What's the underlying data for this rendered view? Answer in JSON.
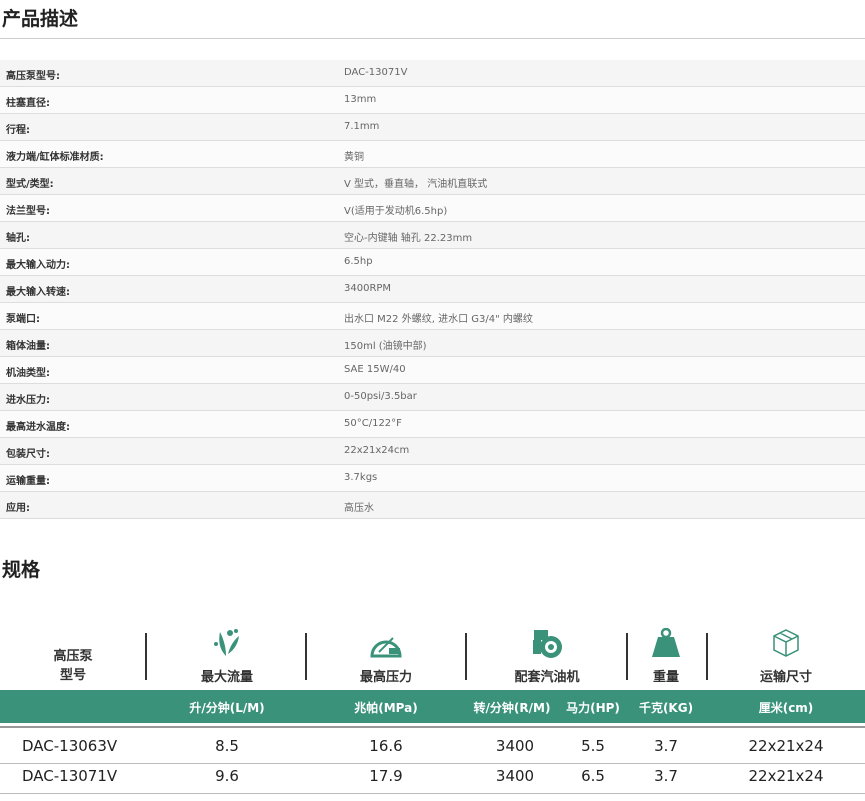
{
  "description": {
    "title": "产品描述",
    "rows": [
      {
        "k": "高压泵型号:",
        "v": "DAC-13071V"
      },
      {
        "k": "柱塞直径:",
        "v": "13mm"
      },
      {
        "k": "行程:",
        "v": "7.1mm"
      },
      {
        "k": "液力端/缸体标准材质:",
        "v": "黄铜"
      },
      {
        "k": "型式/类型:",
        "v": "V 型式，垂直轴， 汽油机直联式"
      },
      {
        "k": "法兰型号:",
        "v": "V(适用于发动机6.5hp)"
      },
      {
        "k": "轴孔:",
        "v": "空心-内键轴 轴孔 22.23mm"
      },
      {
        "k": "最大输入动力:",
        "v": "6.5hp"
      },
      {
        "k": "最大输入转速:",
        "v": "3400RPM"
      },
      {
        "k": "泵端口:",
        "v": "出水口 M22 外螺纹, 进水口 G3/4\" 内螺纹"
      },
      {
        "k": "箱体油量:",
        "v": "150ml (油镜中部)"
      },
      {
        "k": "机油类型:",
        "v": "SAE 15W/40"
      },
      {
        "k": "进水压力:",
        "v": "0-50psi/3.5bar"
      },
      {
        "k": "最高进水温度:",
        "v": "50°C/122°F"
      },
      {
        "k": "包装尺寸:",
        "v": "22x21x24cm"
      },
      {
        "k": "运输重量:",
        "v": "3.7kgs"
      },
      {
        "k": "应用:",
        "v": "高压水"
      }
    ]
  },
  "specs": {
    "title": "规格",
    "headers": {
      "model_line1": "高压泵",
      "model_line2": "型号",
      "flow": "最大流量",
      "pressure": "最高压力",
      "engine": "配套汽油机",
      "weight": "重量",
      "size": "运输尺寸"
    },
    "icons": {
      "flow": "leaf-splash-icon",
      "pressure": "gauge-max-icon",
      "engine": "engine-icon",
      "weight": "weight-icon",
      "size": "box-icon"
    },
    "units": {
      "flow": "升/分钟(L/M)",
      "pressure": "兆帕(MPa)",
      "rpm": "转/分钟(R/M)",
      "hp": "马力(HP)",
      "weight": "千克(KG)",
      "size": "厘米(cm)"
    },
    "accent": "#3a927a",
    "rows": [
      {
        "model": "DAC-13063V",
        "flow": "8.5",
        "pressure": "16.6",
        "rpm": "3400",
        "hp": "5.5",
        "weight": "3.7",
        "size": "22x21x24"
      },
      {
        "model": "DAC-13071V",
        "flow": "9.6",
        "pressure": "17.9",
        "rpm": "3400",
        "hp": "6.5",
        "weight": "3.7",
        "size": "22x21x24"
      }
    ]
  }
}
